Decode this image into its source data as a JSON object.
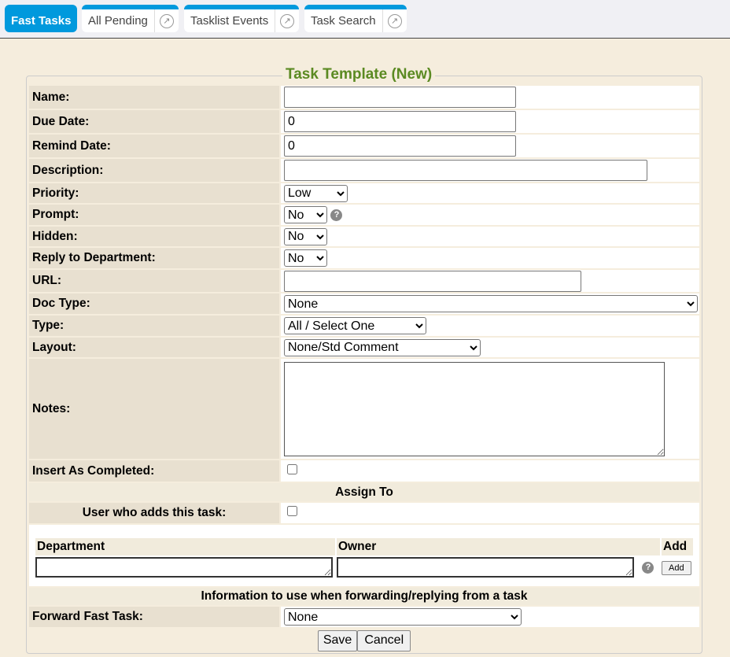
{
  "tabs": [
    {
      "label": "Fast Tasks",
      "active": true
    },
    {
      "label": "All Pending"
    },
    {
      "label": "Tasklist Events"
    },
    {
      "label": "Task Search"
    }
  ],
  "title": "Task Template (New)",
  "fields": {
    "name": {
      "label": "Name:",
      "value": ""
    },
    "due": {
      "label": "Due Date:",
      "value": "0"
    },
    "remind": {
      "label": "Remind Date:",
      "value": "0"
    },
    "description": {
      "label": "Description:",
      "value": ""
    },
    "priority": {
      "label": "Priority:",
      "value": "Low"
    },
    "prompt": {
      "label": "Prompt:",
      "value": "No"
    },
    "hidden": {
      "label": "Hidden:",
      "value": "No"
    },
    "reply": {
      "label": "Reply to Department:",
      "value": "No"
    },
    "url": {
      "label": "URL:",
      "value": ""
    },
    "doctype": {
      "label": "Doc Type:",
      "value": "None"
    },
    "type": {
      "label": "Type:",
      "value": "All / Select One"
    },
    "layout": {
      "label": "Layout:",
      "value": "None/Std Comment"
    },
    "notes": {
      "label": "Notes:",
      "value": ""
    },
    "insert": {
      "label": "Insert As Completed:",
      "checked": false
    }
  },
  "assign": {
    "heading": "Assign To",
    "user_label": "User who adds this task:",
    "user_checked": false,
    "col_department": "Department",
    "col_owner": "Owner",
    "col_add": "Add",
    "add_button": "Add"
  },
  "forward": {
    "heading": "Information to use when forwarding/replying from a task",
    "label": "Forward Fast Task:",
    "value": "None"
  },
  "buttons": {
    "save": "Save",
    "cancel": "Cancel"
  }
}
